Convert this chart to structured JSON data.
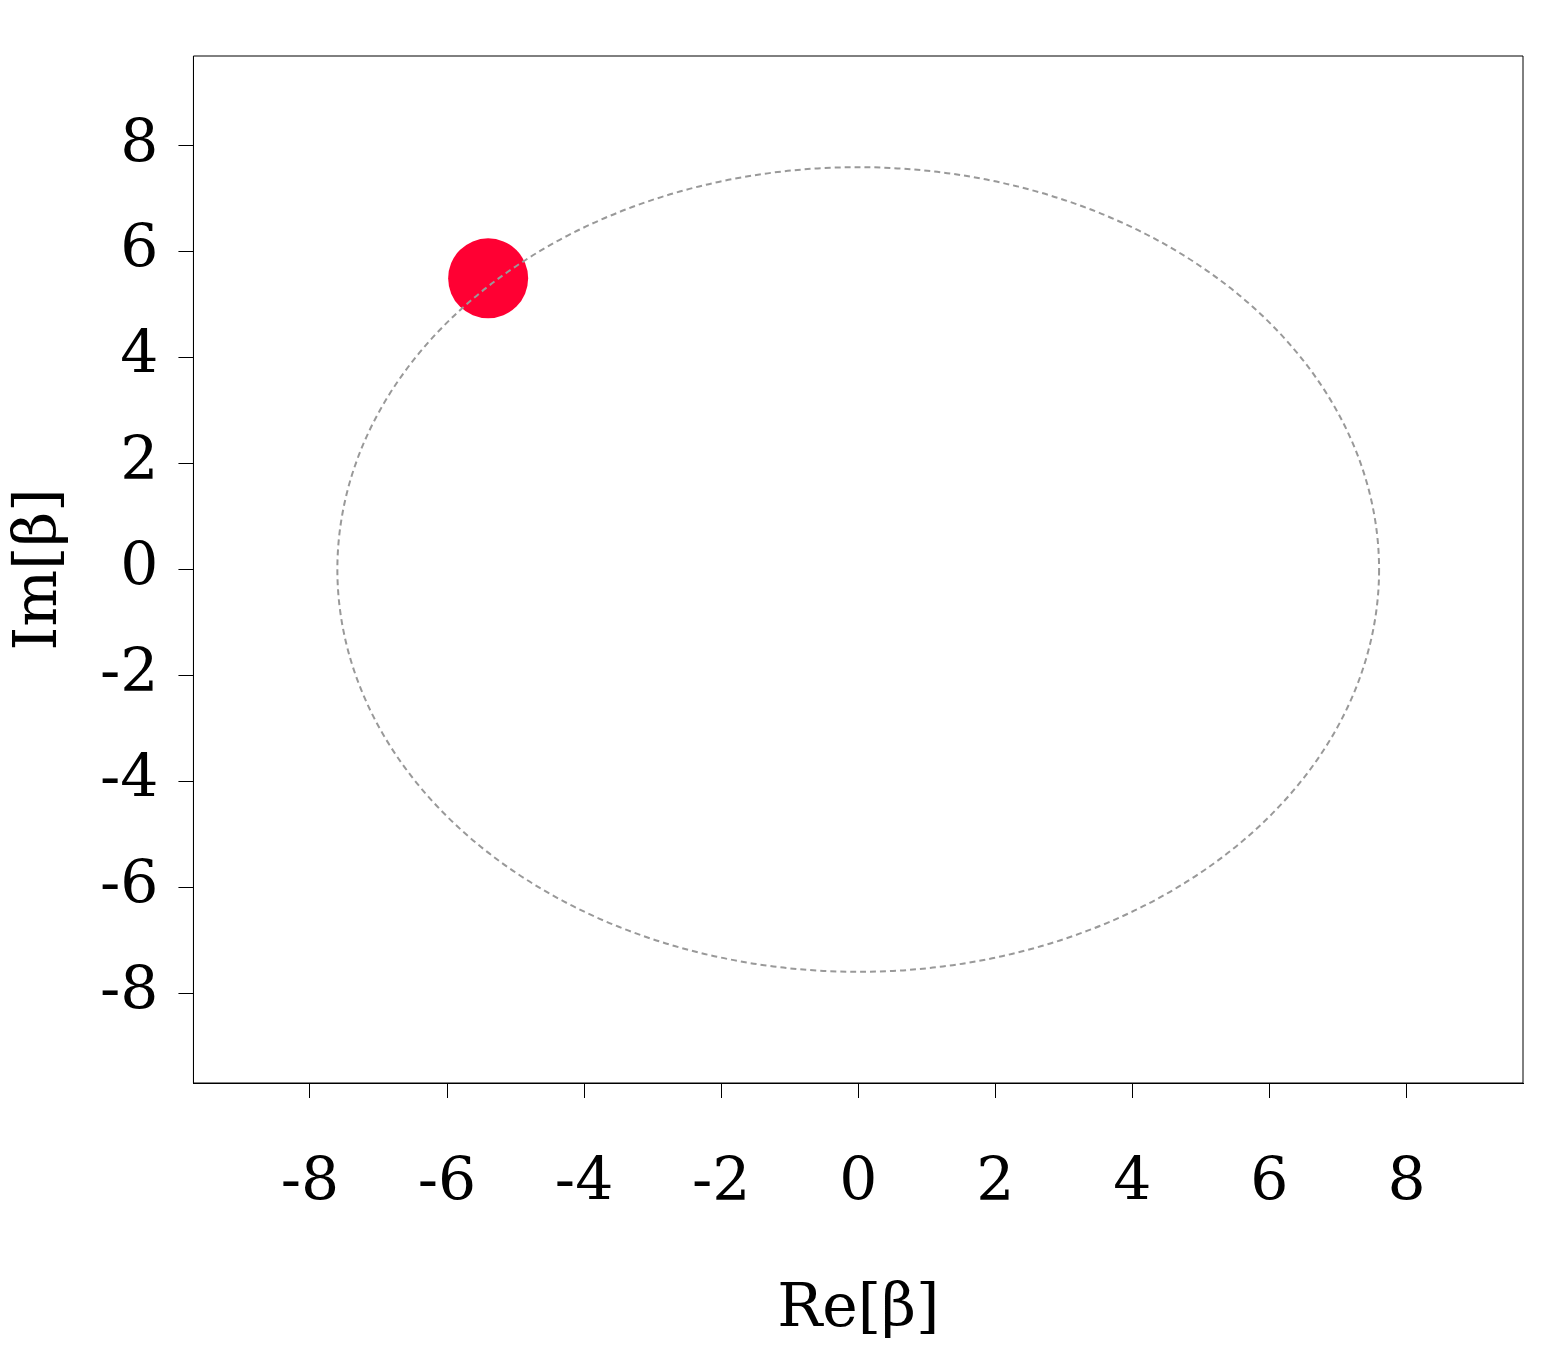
{
  "chart_data": {
    "type": "scatter",
    "xlabel": "Re[β]",
    "ylabel": "Im[β]",
    "xlim": [
      -9.7,
      9.7
    ],
    "ylim": [
      -9.7,
      9.7
    ],
    "xticks": [
      -8,
      -6,
      -4,
      -2,
      0,
      2,
      4,
      6,
      8
    ],
    "yticks": [
      -8,
      -6,
      -4,
      -2,
      0,
      2,
      4,
      6,
      8
    ],
    "grid": false,
    "legend": false,
    "series": [
      {
        "type": "scatter",
        "color": "#ff0033",
        "marker": "circle",
        "x": [
          -5.4
        ],
        "values": [
          5.5
        ]
      }
    ]
  }
}
